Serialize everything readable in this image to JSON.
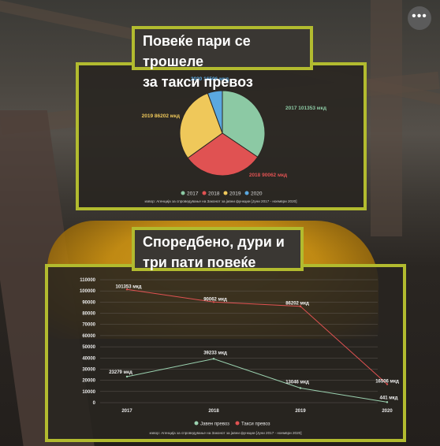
{
  "menu_icon": "ellipsis-icon",
  "title1": {
    "line1": "Повеќе пари се трошеле",
    "line2": "за такси превоз"
  },
  "title2": {
    "line1": "Споредбено, дури и",
    "line2": "три пати повеќе"
  },
  "colors": {
    "accent": "#b2bb2f",
    "pie": [
      "#8cc9a4",
      "#e05252",
      "#efc85a",
      "#5aa8e0"
    ],
    "line_public": "#9bd2b0",
    "line_taxi": "#e05252"
  },
  "pie_labels": [
    "2017 101353 мкд",
    "2018 90062 мкд",
    "2019 86202 мкд",
    "2020 16506 мкд"
  ],
  "source1": "извор: Агенција за спроведување на Законот за јавни функции [Јуни 2017 - ноември 2020]",
  "source2": "извор: Агенција за спроведување на Законот за јавни функции [Јуни 2017 - ноември 2020]",
  "line_labels_taxi": [
    "101353 мкд",
    "90062 мкд",
    "86202 мкд",
    "16506 мкд"
  ],
  "line_labels_public": [
    "23279 мкд",
    "39233 мкд",
    "13046 мкд",
    "441 мкд"
  ],
  "chart_data": [
    {
      "type": "pie",
      "categories": [
        "2017",
        "2018",
        "2019",
        "2020"
      ],
      "values": [
        101353,
        90062,
        86202,
        16506
      ],
      "legend": "bottom"
    },
    {
      "type": "line",
      "categories": [
        "2017",
        "2018",
        "2019",
        "2020"
      ],
      "series": [
        {
          "name": "Јавен превоз",
          "values": [
            23279,
            39233,
            13046,
            441
          ]
        },
        {
          "name": "Такси превоз",
          "values": [
            101353,
            90062,
            86202,
            16506
          ]
        }
      ],
      "ylim": [
        0,
        110000
      ],
      "yticks": [
        0,
        10000,
        20000,
        30000,
        40000,
        50000,
        60000,
        70000,
        80000,
        90000,
        100000,
        110000
      ],
      "grid": true,
      "legend": "bottom"
    }
  ]
}
